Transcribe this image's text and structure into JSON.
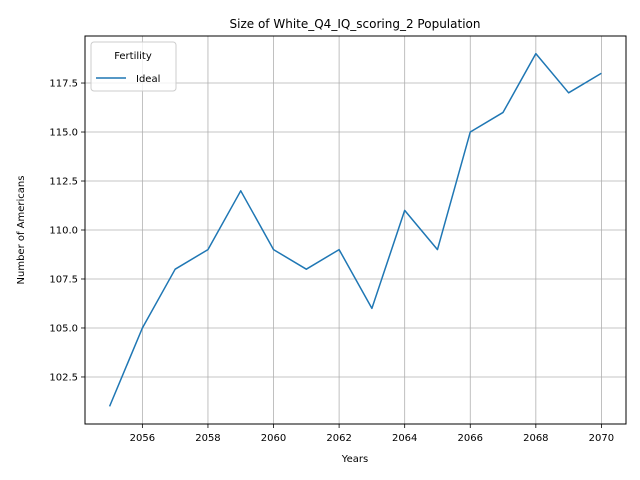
{
  "chart_data": {
    "type": "line",
    "title": "Size of White_Q4_IQ_scoring_2 Population",
    "xlabel": "Years",
    "ylabel": "Number of Americans",
    "xlim": [
      2054.25,
      2070.75
    ],
    "ylim": [
      100.1,
      119.9
    ],
    "xticks": [
      2056,
      2058,
      2060,
      2062,
      2064,
      2066,
      2068,
      2070
    ],
    "yticks": [
      102.5,
      105.0,
      107.5,
      110.0,
      112.5,
      115.0,
      117.5
    ],
    "ytick_labels": [
      "102.5",
      "105.0",
      "107.5",
      "110.0",
      "112.5",
      "115.0",
      "117.5"
    ],
    "grid": true,
    "legend": {
      "title": "Fertility",
      "placement": "top-left"
    },
    "x": [
      2055,
      2056,
      2057,
      2058,
      2059,
      2060,
      2061,
      2062,
      2063,
      2064,
      2065,
      2066,
      2067,
      2068,
      2069,
      2070
    ],
    "series": [
      {
        "name": "Ideal",
        "color": "#1f77b4",
        "values": [
          101,
          105,
          108,
          109,
          112,
          109,
          108,
          109,
          106,
          111,
          109,
          115,
          116,
          119,
          117,
          118
        ]
      }
    ]
  }
}
